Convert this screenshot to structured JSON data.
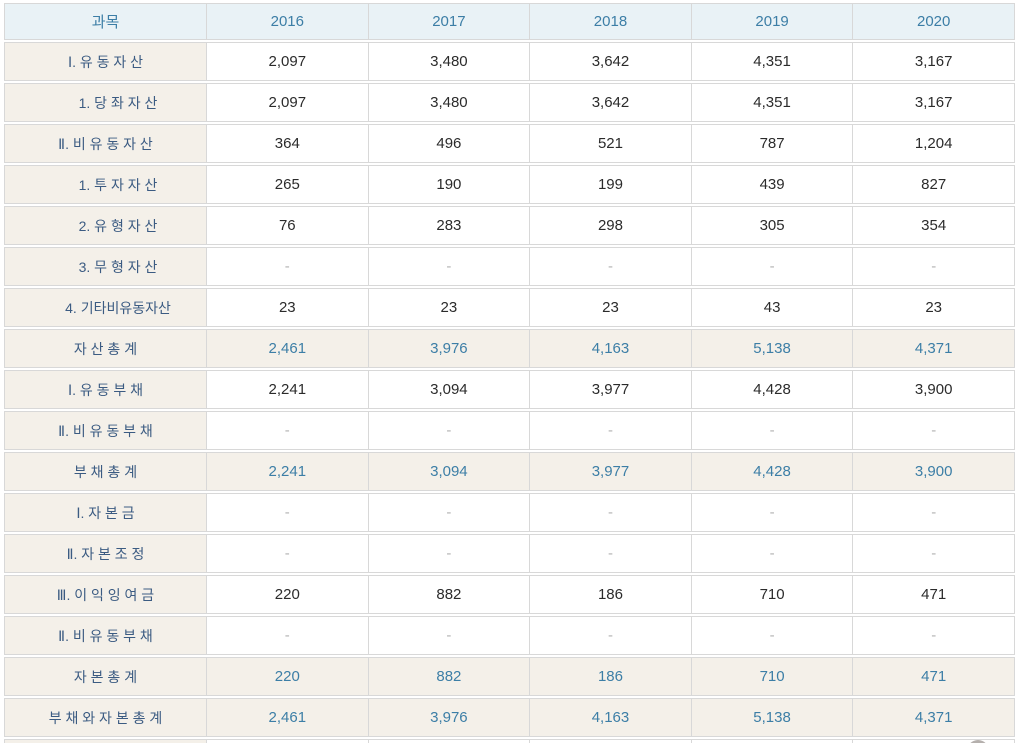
{
  "table": {
    "header": {
      "subject": "과목",
      "years": [
        "2016",
        "2017",
        "2018",
        "2019",
        "2020"
      ]
    },
    "rows": [
      {
        "type": "item",
        "label": "Ⅰ. 유 동 자 산",
        "values": [
          "2,097",
          "3,480",
          "3,642",
          "4,351",
          "3,167"
        ]
      },
      {
        "type": "sub",
        "label": "1. 당 좌 자 산",
        "values": [
          "2,097",
          "3,480",
          "3,642",
          "4,351",
          "3,167"
        ]
      },
      {
        "type": "item",
        "label": "Ⅱ. 비 유 동 자 산",
        "values": [
          "364",
          "496",
          "521",
          "787",
          "1,204"
        ]
      },
      {
        "type": "sub",
        "label": "1. 투 자 자 산",
        "values": [
          "265",
          "190",
          "199",
          "439",
          "827"
        ]
      },
      {
        "type": "sub",
        "label": "2. 유 형 자 산",
        "values": [
          "76",
          "283",
          "298",
          "305",
          "354"
        ]
      },
      {
        "type": "sub",
        "label": "3. 무 형 자 산",
        "values": [
          "-",
          "-",
          "-",
          "-",
          "-"
        ]
      },
      {
        "type": "sub",
        "label": "4. 기타비유동자산",
        "values": [
          "23",
          "23",
          "23",
          "43",
          "23"
        ]
      },
      {
        "type": "total",
        "label": "자 산 총 계",
        "values": [
          "2,461",
          "3,976",
          "4,163",
          "5,138",
          "4,371"
        ]
      },
      {
        "type": "item",
        "label": "Ⅰ. 유 동 부 채",
        "values": [
          "2,241",
          "3,094",
          "3,977",
          "4,428",
          "3,900"
        ]
      },
      {
        "type": "item",
        "label": "Ⅱ. 비 유 동 부 채",
        "values": [
          "-",
          "-",
          "-",
          "-",
          "-"
        ]
      },
      {
        "type": "total",
        "label": "부 채 총 계",
        "values": [
          "2,241",
          "3,094",
          "3,977",
          "4,428",
          "3,900"
        ]
      },
      {
        "type": "item",
        "label": "Ⅰ. 자 본 금",
        "values": [
          "-",
          "-",
          "-",
          "-",
          "-"
        ]
      },
      {
        "type": "item",
        "label": "Ⅱ. 자 본 조 정",
        "values": [
          "-",
          "-",
          "-",
          "-",
          "-"
        ]
      },
      {
        "type": "item",
        "label": "Ⅲ. 이 익 잉 여 금",
        "values": [
          "220",
          "882",
          "186",
          "710",
          "471"
        ]
      },
      {
        "type": "item",
        "label": "Ⅱ. 비 유 동 부 채",
        "values": [
          "-",
          "-",
          "-",
          "-",
          "-"
        ]
      },
      {
        "type": "total",
        "label": "자 본 총 계",
        "values": [
          "220",
          "882",
          "186",
          "710",
          "471"
        ]
      },
      {
        "type": "total",
        "label": "부 채 와 자 본 총 계",
        "values": [
          "2,461",
          "3,976",
          "4,163",
          "5,138",
          "4,371"
        ]
      },
      {
        "type": "partial",
        "label": "",
        "values": [
          "",
          "",
          "",
          "",
          ""
        ]
      }
    ],
    "colors": {
      "header_bg": "#e9f2f6",
      "header_text": "#3c7ea6",
      "label_bg": "#f4f0e9",
      "label_text": "#3b5b82",
      "value_text": "#2b2b2b",
      "dash_text": "#b3b3b3",
      "total_value_text": "#3c7ea6",
      "border": "#d8d8d8"
    }
  }
}
